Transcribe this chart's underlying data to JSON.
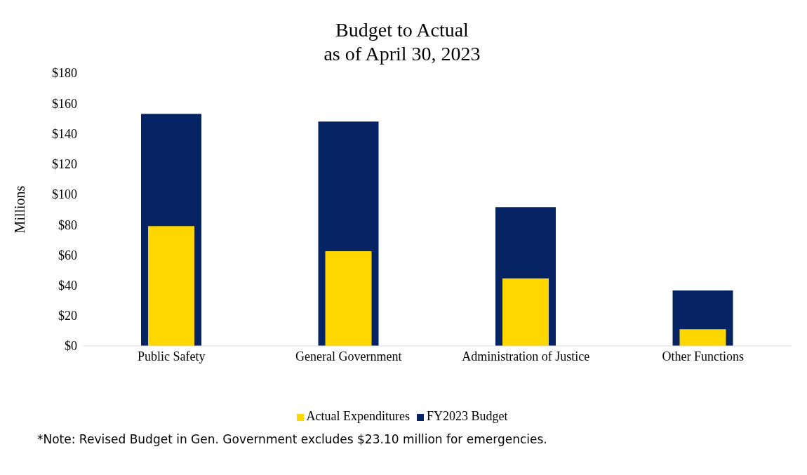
{
  "chart_data": {
    "type": "bar",
    "title": "Budget to Actual\nas of April 30, 2023",
    "ylabel": "Millions",
    "categories": [
      "Public Safety",
      "General Government",
      "Administration of Justice",
      "Other Functions"
    ],
    "series": [
      {
        "name": "FY2023 Budget",
        "color": "#062363",
        "values": [
          153,
          148,
          91.5,
          36.5
        ]
      },
      {
        "name": "Actual Expenditures",
        "color": "#ffd700",
        "values": [
          79,
          62.5,
          44.5,
          11
        ]
      }
    ],
    "ylim": [
      0,
      180
    ],
    "yticks": [
      {
        "value": 0,
        "label": "$0"
      },
      {
        "value": 20,
        "label": "$20"
      },
      {
        "value": 40,
        "label": "$40"
      },
      {
        "value": 60,
        "label": "$60"
      },
      {
        "value": 80,
        "label": "$80"
      },
      {
        "value": 100,
        "label": "$100"
      },
      {
        "value": 120,
        "label": "$120"
      },
      {
        "value": 140,
        "label": "$140"
      },
      {
        "value": 160,
        "label": "$160"
      },
      {
        "value": 180,
        "label": "$180"
      }
    ],
    "grid": false,
    "legend": "bottom",
    "annotations": [
      "*Note: Revised Budget in Gen. Government excludes $23.10 million for emergencies."
    ]
  }
}
